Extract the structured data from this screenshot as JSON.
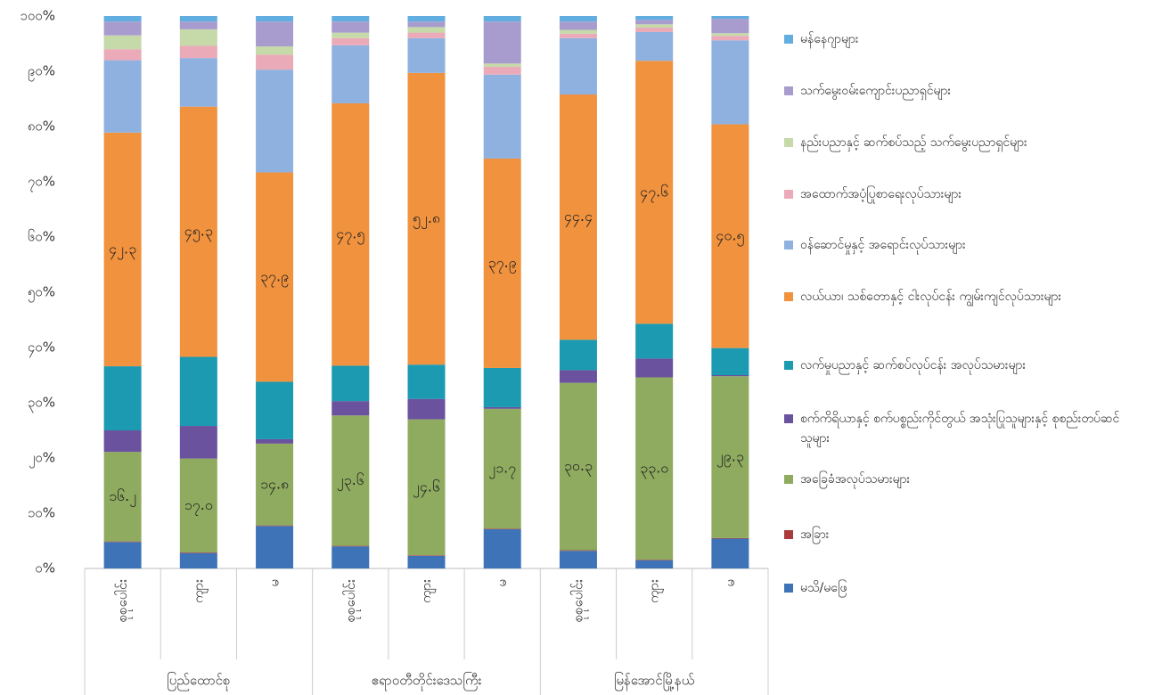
{
  "chart_data": {
    "type": "stacked_bar",
    "groups": [
      "ပြည်ထောင်စု",
      "ဧရာဝတီတိုင်းဒေသကြီး",
      "မြန်အောင်မြို့နယ်"
    ],
    "categories": [
      "စုစုပေါင်း",
      "ကျား",
      "မ",
      "စုစုပေါင်း",
      "ကျား",
      "မ",
      "စုစုပေါင်း",
      "ကျား",
      "မ"
    ],
    "ylim": [
      0,
      100
    ],
    "yticks": [
      {
        "value": 0,
        "label": "၀%"
      },
      {
        "value": 10,
        "label": "၁၀%"
      },
      {
        "value": 20,
        "label": "၂၀%"
      },
      {
        "value": 30,
        "label": "၃၀%"
      },
      {
        "value": 40,
        "label": "၄၀%"
      },
      {
        "value": 50,
        "label": "၅၀%"
      },
      {
        "value": 60,
        "label": "၆၀%"
      },
      {
        "value": 70,
        "label": "၇၀%"
      },
      {
        "value": 80,
        "label": "၈၀%"
      },
      {
        "value": 90,
        "label": "၉၀%"
      },
      {
        "value": 100,
        "label": "၁၀၀%"
      }
    ],
    "grid": false,
    "legend": "right",
    "series": [
      {
        "name": "မသိ/မဖြေ",
        "color": "#3e74b7",
        "values": [
          4.8,
          2.8,
          7.7,
          4.0,
          2.3,
          7.1,
          3.2,
          1.5,
          5.4
        ]
      },
      {
        "name": "အခြား",
        "color": "#a83b3b",
        "values": [
          0.1,
          0.1,
          0.1,
          0.1,
          0.1,
          0.1,
          0.1,
          0.1,
          0.1
        ]
      },
      {
        "name": "အခြေခံအလုပ်သမားများ",
        "color": "#8fab5f",
        "values": [
          16.2,
          17.0,
          14.8,
          23.6,
          24.6,
          21.7,
          30.3,
          33.0,
          29.3
        ],
        "value_labels": [
          "၁၆.၂",
          "၁၇.၀",
          "၁၄.၈",
          "၂၃.၆",
          "၂၄.၆",
          "၂၁.၇",
          "၃၀.၃",
          "၃၃.၀",
          "၂၉.၃"
        ]
      },
      {
        "name": "စက်ကိရိယာနှင့် စက်ပစ္စည်းကိုင်တွယ် အသုံးပြုသူများနှင့် စုစည်းတပ်ဆင်သူများ",
        "color": "#6a529e",
        "values": [
          3.9,
          5.9,
          0.8,
          2.6,
          3.7,
          0.3,
          2.3,
          3.4,
          0.2
        ]
      },
      {
        "name": "လက်မှုပညာနှင့် ဆက်စပ်လုပ်ငန်း အလုပ်သမားများ",
        "color": "#1b9ab2",
        "values": [
          11.6,
          12.5,
          10.4,
          6.4,
          6.2,
          7.1,
          5.5,
          6.3,
          4.9
        ]
      },
      {
        "name": "လယ်ယာ၊ သစ်တောနှင့် ငါးလုပ်ငန်း ကျွမ်းကျင်လုပ်သားများ",
        "color": "#f0923e",
        "values": [
          42.3,
          45.3,
          37.9,
          47.5,
          52.8,
          37.9,
          44.4,
          47.6,
          40.5
        ],
        "value_labels": [
          "၄၂.၃",
          "၄၅.၃",
          "၃၇.၉",
          "၄၇.၅",
          "၅၂.၈",
          "၃၇.၉",
          "၄၄.၄",
          "၄၇.၆",
          "၄၀.၅"
        ]
      },
      {
        "name": "ဝန်ဆောင်မှုနှင့် အရောင်းလုပ်သားများ",
        "color": "#8fb1e0",
        "values": [
          13.1,
          8.8,
          18.6,
          10.5,
          6.3,
          15.2,
          10.2,
          5.2,
          15.2
        ]
      },
      {
        "name": "အထောက်အပံ့ပြုစာရေးလုပ်သားများ",
        "color": "#ebaab8",
        "values": [
          2.0,
          2.2,
          2.7,
          1.3,
          1.0,
          1.4,
          0.8,
          0.8,
          0.8
        ]
      },
      {
        "name": "နည်းပညာနှင့် ဆက်စပ်သည့် သက်မွေးပညာရှင်များ",
        "color": "#c6d9a8",
        "values": [
          2.5,
          3.0,
          1.5,
          1.0,
          1.0,
          0.6,
          0.7,
          0.6,
          0.5
        ]
      },
      {
        "name": "သက်မွေးဝမ်းကျောင်းပညာရှင်များ",
        "color": "#a89ccf",
        "values": [
          2.5,
          1.4,
          4.5,
          2.0,
          1.0,
          7.6,
          1.5,
          0.8,
          2.6
        ]
      },
      {
        "name": "မန်နေဂျာများ",
        "color": "#63aee0",
        "values": [
          1.0,
          1.0,
          1.0,
          1.0,
          1.0,
          1.0,
          1.0,
          0.7,
          0.5
        ]
      }
    ]
  }
}
